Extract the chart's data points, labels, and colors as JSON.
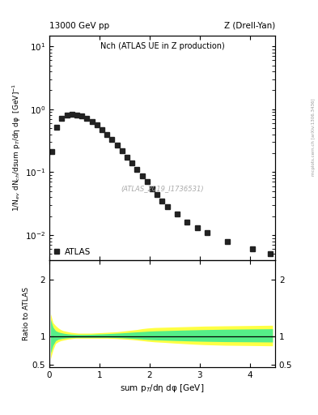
{
  "title_left": "13000 GeV pp",
  "title_right": "Z (Drell-Yan)",
  "plot_title": "Nch (ATLAS UE in Z production)",
  "ylabel_main": "1/N$_{ev}$ dN$_{ch}$/dsum p$_{T}$/dη dφ  [GeV]$^{-1}$",
  "ylabel_ratio": "Ratio to ATLAS",
  "xlabel": "sum p$_{T}$/dη dφ [GeV]",
  "watermark": "(ATLAS_2019_I1736531)",
  "right_label": "mcplots.cern.ch [arXiv:1306.3436]",
  "atlas_label": "ATLAS",
  "xlim": [
    0,
    4.5
  ],
  "ylim_main": [
    0.004,
    15
  ],
  "ylim_ratio": [
    0.45,
    2.35
  ],
  "data_x": [
    0.05,
    0.15,
    0.25,
    0.35,
    0.45,
    0.55,
    0.65,
    0.75,
    0.85,
    0.95,
    1.05,
    1.15,
    1.25,
    1.35,
    1.45,
    1.55,
    1.65,
    1.75,
    1.85,
    1.95,
    2.05,
    2.15,
    2.25,
    2.35,
    2.55,
    2.75,
    2.95,
    3.15,
    3.55,
    4.05,
    4.4
  ],
  "data_y": [
    0.21,
    0.52,
    0.72,
    0.8,
    0.83,
    0.82,
    0.78,
    0.72,
    0.64,
    0.56,
    0.48,
    0.4,
    0.33,
    0.27,
    0.22,
    0.175,
    0.14,
    0.11,
    0.088,
    0.07,
    0.055,
    0.044,
    0.035,
    0.028,
    0.022,
    0.016,
    0.013,
    0.011,
    0.008,
    0.006,
    0.005
  ],
  "data_color": "#222222",
  "data_marker": "s",
  "data_markersize": 4,
  "ratio_x": [
    0.025,
    0.075,
    0.125,
    0.175,
    0.225,
    0.275,
    0.325,
    0.375,
    0.425,
    0.475,
    0.525,
    0.575,
    0.625,
    0.675,
    0.725,
    0.775,
    0.825,
    0.875,
    0.925,
    0.975,
    1.05,
    1.15,
    1.25,
    1.35,
    1.45,
    1.55,
    1.65,
    1.75,
    1.85,
    1.95,
    2.1,
    2.3,
    2.5,
    2.7,
    2.9,
    3.1,
    3.5,
    4.0,
    4.45
  ],
  "b1_lo": [
    0.6,
    0.76,
    0.87,
    0.9,
    0.92,
    0.93,
    0.94,
    0.95,
    0.955,
    0.96,
    0.965,
    0.965,
    0.965,
    0.965,
    0.965,
    0.965,
    0.965,
    0.965,
    0.965,
    0.965,
    0.965,
    0.965,
    0.962,
    0.958,
    0.953,
    0.947,
    0.94,
    0.932,
    0.922,
    0.912,
    0.9,
    0.89,
    0.878,
    0.868,
    0.858,
    0.85,
    0.84,
    0.835,
    0.83
  ],
  "b1_hi": [
    1.4,
    1.24,
    1.19,
    1.15,
    1.12,
    1.1,
    1.09,
    1.08,
    1.07,
    1.065,
    1.06,
    1.055,
    1.055,
    1.055,
    1.055,
    1.055,
    1.055,
    1.057,
    1.06,
    1.062,
    1.065,
    1.07,
    1.075,
    1.08,
    1.09,
    1.1,
    1.11,
    1.12,
    1.135,
    1.145,
    1.155,
    1.16,
    1.165,
    1.17,
    1.175,
    1.18,
    1.185,
    1.19,
    1.195
  ],
  "b2_lo": [
    0.7,
    0.84,
    0.92,
    0.945,
    0.955,
    0.963,
    0.968,
    0.972,
    0.975,
    0.977,
    0.979,
    0.98,
    0.98,
    0.98,
    0.98,
    0.98,
    0.98,
    0.98,
    0.98,
    0.98,
    0.98,
    0.98,
    0.978,
    0.975,
    0.972,
    0.967,
    0.962,
    0.956,
    0.95,
    0.943,
    0.936,
    0.93,
    0.924,
    0.919,
    0.914,
    0.91,
    0.904,
    0.901,
    0.898
  ],
  "b2_hi": [
    1.3,
    1.16,
    1.1,
    1.078,
    1.065,
    1.055,
    1.048,
    1.042,
    1.038,
    1.035,
    1.033,
    1.032,
    1.032,
    1.032,
    1.032,
    1.033,
    1.034,
    1.036,
    1.038,
    1.04,
    1.042,
    1.046,
    1.05,
    1.055,
    1.06,
    1.066,
    1.072,
    1.078,
    1.083,
    1.089,
    1.095,
    1.1,
    1.105,
    1.11,
    1.114,
    1.118,
    1.124,
    1.129,
    1.133
  ],
  "band_yellow_color": "#ffff44",
  "band_green_color": "#55ee88",
  "ratio_line_color": "#000000",
  "bg_color": "#ffffff"
}
